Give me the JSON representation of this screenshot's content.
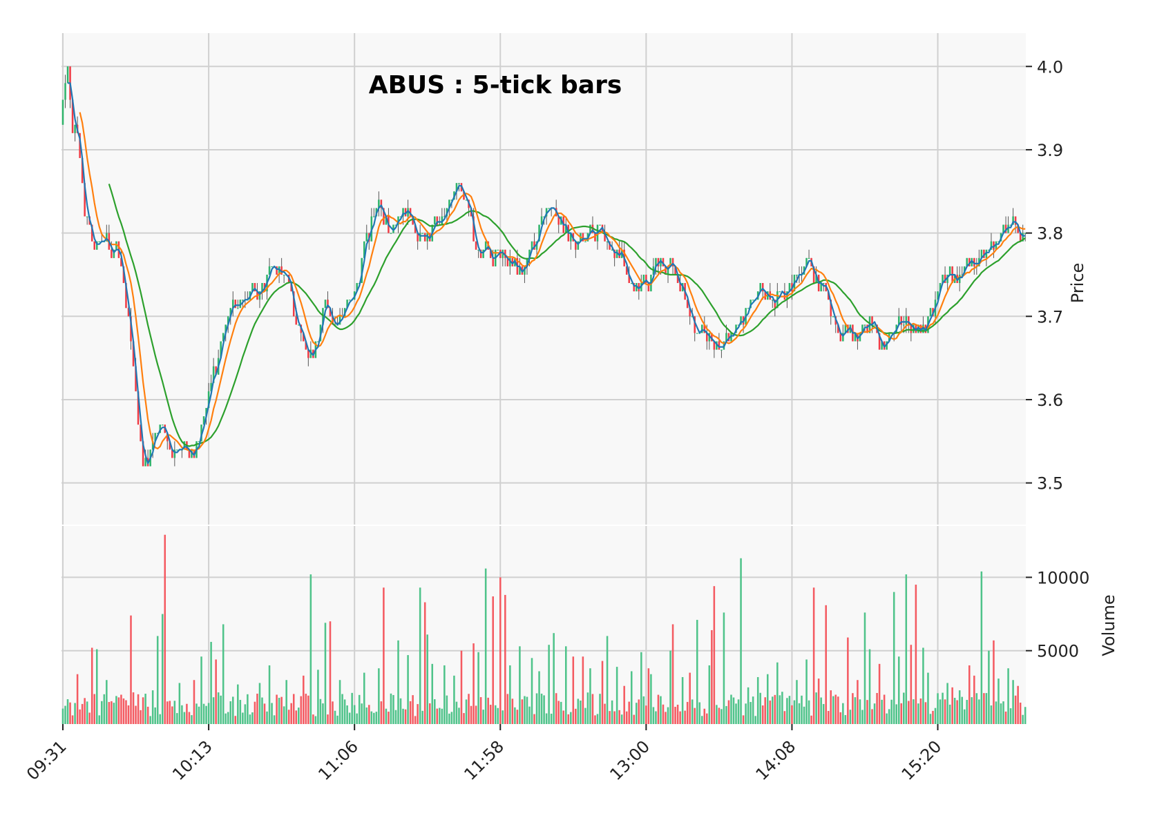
{
  "colors": {
    "up": "#2eb36a",
    "down": "#ef3b45",
    "up_volume": "#4fc38a",
    "down_volume": "#f45a61",
    "ma_fast": "#1f77b4",
    "ma_mid": "#ff7f0e",
    "ma_slow": "#2ca02c",
    "panel_bg": "#f8f8f8",
    "grid": "#d0d0d0"
  },
  "chart_data": {
    "type": "candlestick",
    "title": "ABUS : 5-tick bars",
    "price_axis": {
      "label": "Price",
      "position": "right",
      "ticks": [
        3.5,
        3.6,
        3.7,
        3.8,
        3.9,
        4.0
      ],
      "tick_labels": [
        "3.5",
        "3.6",
        "3.7",
        "3.8",
        "3.9",
        "4.0"
      ],
      "ylim": [
        3.45,
        4.04
      ]
    },
    "volume_axis": {
      "label": "Volume",
      "position": "right",
      "ticks": [
        5000,
        10000
      ],
      "tick_labels": [
        "5000",
        "10000"
      ],
      "ylim": [
        0,
        13500
      ]
    },
    "x_axis": {
      "tick_labels": [
        "09:31",
        "10:13",
        "11:06",
        "11:58",
        "13:00",
        "14:08",
        "15:20"
      ],
      "tick_bar_index": [
        0,
        60,
        120,
        180,
        240,
        300,
        360
      ],
      "bar_count": 397
    },
    "grid": true,
    "legend": "none",
    "key_points": [
      [
        0,
        3.96
      ],
      [
        2,
        4.0
      ],
      [
        4,
        3.93
      ],
      [
        7,
        3.91
      ],
      [
        10,
        3.82
      ],
      [
        13,
        3.79
      ],
      [
        18,
        3.79
      ],
      [
        22,
        3.78
      ],
      [
        26,
        3.76
      ],
      [
        30,
        3.68
      ],
      [
        33,
        3.59
      ],
      [
        35,
        3.53
      ],
      [
        38,
        3.52
      ],
      [
        40,
        3.55
      ],
      [
        43,
        3.57
      ],
      [
        46,
        3.56
      ],
      [
        49,
        3.53
      ],
      [
        53,
        3.55
      ],
      [
        57,
        3.53
      ],
      [
        60,
        3.55
      ],
      [
        63,
        3.58
      ],
      [
        66,
        3.62
      ],
      [
        70,
        3.66
      ],
      [
        73,
        3.69
      ],
      [
        76,
        3.72
      ],
      [
        80,
        3.72
      ],
      [
        84,
        3.73
      ],
      [
        88,
        3.73
      ],
      [
        91,
        3.75
      ],
      [
        95,
        3.76
      ],
      [
        98,
        3.76
      ],
      [
        101,
        3.74
      ],
      [
        104,
        3.69
      ],
      [
        108,
        3.67
      ],
      [
        112,
        3.65
      ],
      [
        115,
        3.7
      ],
      [
        118,
        3.71
      ],
      [
        121,
        3.69
      ],
      [
        125,
        3.7
      ],
      [
        128,
        3.72
      ],
      [
        131,
        3.73
      ],
      [
        134,
        3.78
      ],
      [
        137,
        3.81
      ],
      [
        140,
        3.84
      ],
      [
        143,
        3.82
      ],
      [
        146,
        3.8
      ],
      [
        149,
        3.82
      ],
      [
        152,
        3.83
      ],
      [
        155,
        3.82
      ],
      [
        158,
        3.8
      ],
      [
        161,
        3.79
      ],
      [
        164,
        3.8
      ],
      [
        167,
        3.81
      ],
      [
        170,
        3.82
      ],
      [
        173,
        3.84
      ],
      [
        176,
        3.86
      ],
      [
        178,
        3.85
      ],
      [
        181,
        3.83
      ],
      [
        184,
        3.78
      ],
      [
        187,
        3.77
      ],
      [
        190,
        3.77
      ],
      [
        193,
        3.78
      ],
      [
        196,
        3.77
      ],
      [
        199,
        3.77
      ],
      [
        202,
        3.76
      ],
      [
        205,
        3.75
      ],
      [
        208,
        3.77
      ],
      [
        211,
        3.79
      ],
      [
        214,
        3.82
      ],
      [
        217,
        3.84
      ],
      [
        220,
        3.83
      ],
      [
        223,
        3.8
      ],
      [
        226,
        3.79
      ],
      [
        229,
        3.79
      ],
      [
        232,
        3.79
      ],
      [
        235,
        3.8
      ],
      [
        238,
        3.81
      ],
      [
        241,
        3.8
      ],
      [
        244,
        3.78
      ],
      [
        247,
        3.77
      ],
      [
        250,
        3.76
      ],
      [
        253,
        3.74
      ],
      [
        256,
        3.73
      ],
      [
        259,
        3.74
      ],
      [
        262,
        3.75
      ],
      [
        265,
        3.76
      ],
      [
        268,
        3.76
      ],
      [
        271,
        3.76
      ],
      [
        274,
        3.74
      ],
      [
        277,
        3.72
      ],
      [
        280,
        3.7
      ],
      [
        283,
        3.68
      ],
      [
        286,
        3.68
      ],
      [
        289,
        3.67
      ],
      [
        292,
        3.66
      ],
      [
        295,
        3.67
      ],
      [
        298,
        3.68
      ],
      [
        301,
        3.69
      ],
      [
        304,
        3.7
      ],
      [
        307,
        3.72
      ],
      [
        310,
        3.73
      ],
      [
        313,
        3.73
      ],
      [
        316,
        3.72
      ],
      [
        319,
        3.73
      ],
      [
        322,
        3.73
      ],
      [
        325,
        3.74
      ],
      [
        328,
        3.75
      ],
      [
        331,
        3.77
      ],
      [
        334,
        3.75
      ],
      [
        337,
        3.74
      ],
      [
        340,
        3.73
      ],
      [
        343,
        3.7
      ],
      [
        346,
        3.68
      ],
      [
        349,
        3.68
      ],
      [
        352,
        3.67
      ],
      [
        355,
        3.68
      ],
      [
        358,
        3.69
      ],
      [
        361,
        3.69
      ],
      [
        364,
        3.67
      ],
      [
        367,
        3.67
      ],
      [
        370,
        3.68
      ],
      [
        373,
        3.69
      ],
      [
        376,
        3.69
      ],
      [
        379,
        3.69
      ],
      [
        382,
        3.68
      ],
      [
        385,
        3.69
      ],
      [
        388,
        3.7
      ],
      [
        391,
        3.74
      ],
      [
        394,
        3.75
      ],
      [
        396,
        3.75
      ],
      [
        397,
        3.74
      ],
      [
        400,
        3.75
      ],
      [
        403,
        3.76
      ],
      [
        406,
        3.76
      ],
      [
        409,
        3.77
      ],
      [
        412,
        3.78
      ],
      [
        415,
        3.78
      ],
      [
        418,
        3.8
      ],
      [
        421,
        3.81
      ],
      [
        424,
        3.81
      ],
      [
        427,
        3.8
      ],
      [
        429,
        3.8
      ]
    ],
    "ma_periods": [
      3,
      8,
      20
    ],
    "volume_baseline": 900,
    "volume_spikes": [
      [
        6,
        3400
      ],
      [
        13,
        5200
      ],
      [
        15,
        5100
      ],
      [
        19,
        3000
      ],
      [
        26,
        2000
      ],
      [
        30,
        7400
      ],
      [
        40,
        2300
      ],
      [
        42,
        6000
      ],
      [
        44,
        7500
      ],
      [
        46,
        12900
      ],
      [
        52,
        2800
      ],
      [
        58,
        3000
      ],
      [
        62,
        4600
      ],
      [
        66,
        5600
      ],
      [
        68,
        4400
      ],
      [
        71,
        6800
      ],
      [
        78,
        2700
      ],
      [
        88,
        2800
      ],
      [
        92,
        4000
      ],
      [
        100,
        3000
      ],
      [
        107,
        3300
      ],
      [
        110,
        3800
      ],
      [
        111,
        10200
      ],
      [
        114,
        3700
      ],
      [
        117,
        6900
      ],
      [
        119,
        7000
      ],
      [
        124,
        3000
      ],
      [
        134,
        3500
      ],
      [
        141,
        3800
      ],
      [
        143,
        9300
      ],
      [
        150,
        5700
      ],
      [
        154,
        4700
      ],
      [
        159,
        9300
      ],
      [
        161,
        8300
      ],
      [
        163,
        6100
      ],
      [
        165,
        4100
      ],
      [
        170,
        4000
      ],
      [
        174,
        3300
      ],
      [
        178,
        5000
      ],
      [
        183,
        5500
      ],
      [
        185,
        4900
      ],
      [
        189,
        10600
      ],
      [
        192,
        8700
      ],
      [
        195,
        10000
      ],
      [
        197,
        8800
      ],
      [
        199,
        4000
      ],
      [
        204,
        5300
      ],
      [
        209,
        4500
      ],
      [
        212,
        3600
      ],
      [
        217,
        5400
      ],
      [
        219,
        6200
      ],
      [
        224,
        5300
      ],
      [
        227,
        4600
      ],
      [
        232,
        4600
      ],
      [
        235,
        3800
      ],
      [
        240,
        4300
      ],
      [
        243,
        6000
      ],
      [
        247,
        3900
      ],
      [
        250,
        2600
      ],
      [
        254,
        3600
      ],
      [
        258,
        4900
      ],
      [
        261,
        3800
      ],
      [
        262,
        3400
      ],
      [
        266,
        1900
      ],
      [
        271,
        5000
      ],
      [
        272,
        6800
      ],
      [
        276,
        3200
      ],
      [
        279,
        3500
      ],
      [
        283,
        7100
      ],
      [
        288,
        4000
      ],
      [
        289,
        6400
      ],
      [
        290,
        9400
      ],
      [
        295,
        7600
      ],
      [
        298,
        2000
      ],
      [
        302,
        11300
      ],
      [
        305,
        2500
      ],
      [
        310,
        3200
      ],
      [
        314,
        3400
      ],
      [
        318,
        4200
      ],
      [
        321,
        2200
      ],
      [
        327,
        3000
      ],
      [
        331,
        4400
      ],
      [
        335,
        9300
      ],
      [
        337,
        3100
      ],
      [
        340,
        8100
      ],
      [
        342,
        2300
      ],
      [
        345,
        2000
      ],
      [
        350,
        5900
      ],
      [
        354,
        3000
      ],
      [
        357,
        7600
      ],
      [
        360,
        5100
      ],
      [
        364,
        4100
      ],
      [
        366,
        2000
      ],
      [
        370,
        9000
      ],
      [
        373,
        4600
      ],
      [
        376,
        10200
      ],
      [
        378,
        5400
      ],
      [
        380,
        9500
      ],
      [
        383,
        5200
      ],
      [
        386,
        3500
      ],
      [
        390,
        2100
      ],
      [
        394,
        2800
      ],
      [
        397,
        2500
      ],
      [
        400,
        2300
      ],
      [
        404,
        4000
      ],
      [
        406,
        3300
      ],
      [
        410,
        10400
      ],
      [
        413,
        5000
      ],
      [
        415,
        5700
      ],
      [
        417,
        3100
      ],
      [
        421,
        3800
      ],
      [
        424,
        3000
      ],
      [
        426,
        2600
      ]
    ]
  }
}
